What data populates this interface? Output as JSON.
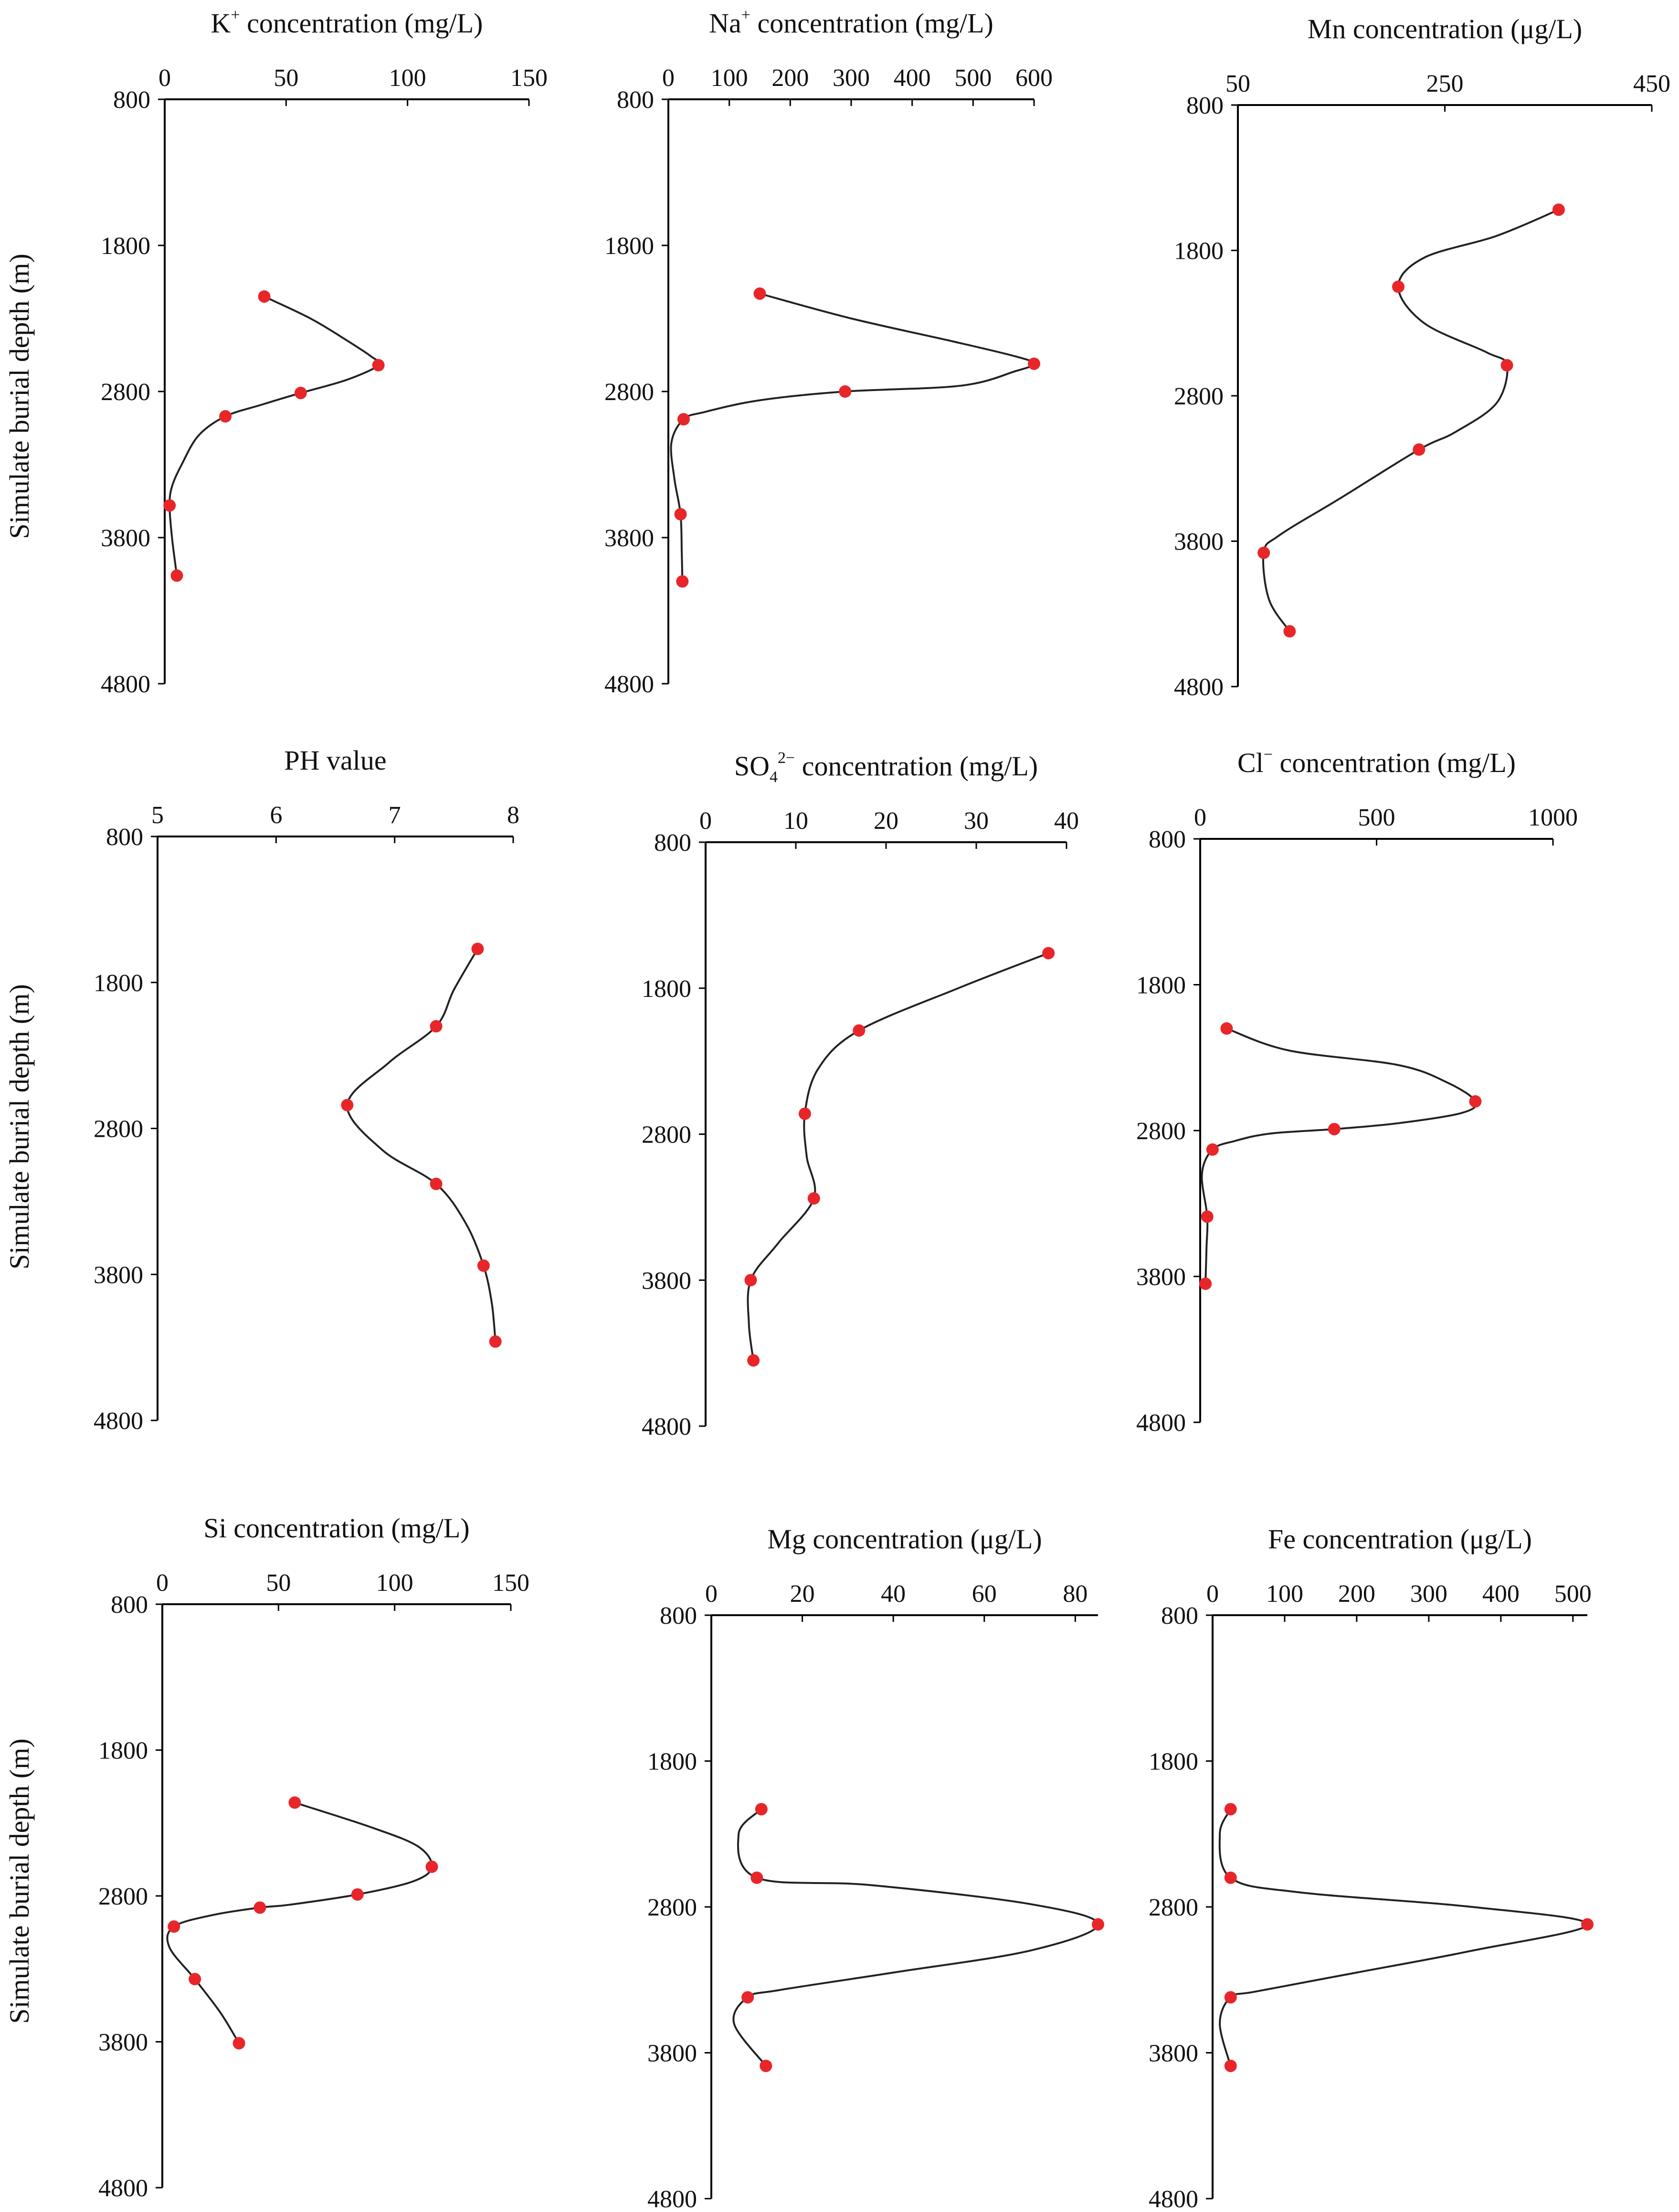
{
  "figure": {
    "y_axis_label": "Simulate burial depth (m)"
  },
  "chart_data": [
    {
      "id": "k",
      "type": "line",
      "title_main": "K",
      "title_sup": "+",
      "title_rest": " concentration (mg/L)",
      "xlim": [
        0,
        150
      ],
      "xticks": [
        0,
        50,
        100,
        150
      ],
      "ylim": [
        800,
        4800
      ],
      "yticks": [
        800,
        1800,
        2800,
        3800,
        4800
      ],
      "yreversed": true,
      "points": [
        [
          41,
          2150
        ],
        [
          88,
          2620
        ],
        [
          56,
          2810
        ],
        [
          25,
          2970
        ],
        [
          2,
          3580
        ],
        [
          5,
          4060
        ]
      ],
      "curve": [
        [
          41,
          2150
        ],
        [
          60,
          2300
        ],
        [
          75,
          2450
        ],
        [
          85,
          2560
        ],
        [
          88,
          2620
        ],
        [
          75,
          2720
        ],
        [
          56,
          2810
        ],
        [
          40,
          2890
        ],
        [
          25,
          2970
        ],
        [
          14,
          3100
        ],
        [
          7,
          3300
        ],
        [
          3,
          3450
        ],
        [
          2,
          3580
        ],
        [
          3,
          3800
        ],
        [
          5,
          4060
        ]
      ]
    },
    {
      "id": "na",
      "type": "line",
      "title_main": "Na",
      "title_sup": "+",
      "title_rest": " concentration (mg/L)",
      "xlim": [
        0,
        600
      ],
      "xticks": [
        0,
        100,
        200,
        300,
        400,
        500,
        600
      ],
      "ylim": [
        800,
        4800
      ],
      "yticks": [
        800,
        1800,
        2800,
        3800,
        4800
      ],
      "yreversed": true,
      "points": [
        [
          150,
          2130
        ],
        [
          600,
          2610
        ],
        [
          290,
          2800
        ],
        [
          25,
          2990
        ],
        [
          20,
          3640
        ],
        [
          23,
          4100
        ]
      ],
      "curve": [
        [
          150,
          2130
        ],
        [
          300,
          2300
        ],
        [
          470,
          2460
        ],
        [
          570,
          2560
        ],
        [
          600,
          2610
        ],
        [
          570,
          2660
        ],
        [
          480,
          2760
        ],
        [
          290,
          2800
        ],
        [
          150,
          2860
        ],
        [
          60,
          2940
        ],
        [
          25,
          2990
        ],
        [
          5,
          3150
        ],
        [
          10,
          3400
        ],
        [
          20,
          3640
        ],
        [
          22,
          3900
        ],
        [
          23,
          4100
        ]
      ]
    },
    {
      "id": "mn",
      "type": "line",
      "title_main": "Mn",
      "title_sup": "",
      "title_rest": " concentration (μg/L)",
      "xlim": [
        50,
        450
      ],
      "xticks": [
        50,
        250,
        450
      ],
      "ylim": [
        800,
        4800
      ],
      "yticks": [
        800,
        1800,
        2800,
        3800,
        4800
      ],
      "yreversed": true,
      "points": [
        [
          360,
          1520
        ],
        [
          205,
          2050
        ],
        [
          310,
          2590
        ],
        [
          225,
          3170
        ],
        [
          75,
          3880
        ],
        [
          100,
          4420
        ]
      ],
      "curve": [
        [
          360,
          1520
        ],
        [
          300,
          1700
        ],
        [
          230,
          1850
        ],
        [
          205,
          2050
        ],
        [
          230,
          2300
        ],
        [
          290,
          2500
        ],
        [
          310,
          2590
        ],
        [
          300,
          2850
        ],
        [
          260,
          3050
        ],
        [
          225,
          3170
        ],
        [
          150,
          3500
        ],
        [
          90,
          3760
        ],
        [
          75,
          3880
        ],
        [
          80,
          4200
        ],
        [
          100,
          4420
        ]
      ]
    },
    {
      "id": "ph",
      "type": "line",
      "title_main": "PH value",
      "title_sup": "",
      "title_rest": "",
      "xlim": [
        5,
        8
      ],
      "xticks": [
        5,
        6,
        7,
        8
      ],
      "ylim": [
        800,
        4800
      ],
      "yticks": [
        800,
        1800,
        2800,
        3800,
        4800
      ],
      "yreversed": true,
      "points": [
        [
          7.7,
          1570
        ],
        [
          7.35,
          2100
        ],
        [
          6.6,
          2640
        ],
        [
          7.35,
          3180
        ],
        [
          7.75,
          3740
        ],
        [
          7.85,
          4260
        ]
      ],
      "curve": [
        [
          7.7,
          1570
        ],
        [
          7.5,
          1850
        ],
        [
          7.35,
          2100
        ],
        [
          6.95,
          2350
        ],
        [
          6.6,
          2640
        ],
        [
          6.9,
          2950
        ],
        [
          7.35,
          3180
        ],
        [
          7.6,
          3450
        ],
        [
          7.75,
          3740
        ],
        [
          7.82,
          4000
        ],
        [
          7.85,
          4260
        ]
      ]
    },
    {
      "id": "so4",
      "type": "line",
      "title_main": "SO",
      "title_sub": "4",
      "title_sup": "2−",
      "title_rest": " concentration (mg/L)",
      "xlim": [
        0,
        40
      ],
      "xticks": [
        0,
        10,
        20,
        30,
        40
      ],
      "ylim": [
        800,
        4800
      ],
      "yticks": [
        800,
        1800,
        2800,
        3800,
        4800
      ],
      "yreversed": true,
      "points": [
        [
          38,
          1560
        ],
        [
          17,
          2090
        ],
        [
          11,
          2660
        ],
        [
          12,
          3240
        ],
        [
          5,
          3800
        ],
        [
          5.3,
          4350
        ]
      ],
      "curve": [
        [
          38,
          1560
        ],
        [
          28,
          1800
        ],
        [
          17,
          2090
        ],
        [
          12.5,
          2350
        ],
        [
          11,
          2660
        ],
        [
          11.2,
          2950
        ],
        [
          12,
          3240
        ],
        [
          8,
          3550
        ],
        [
          5,
          3800
        ],
        [
          4.8,
          4100
        ],
        [
          5.3,
          4350
        ]
      ]
    },
    {
      "id": "cl",
      "type": "line",
      "title_main": "Cl",
      "title_sup": "−",
      "title_rest": " concentration (mg/L)",
      "xlim": [
        0,
        1000
      ],
      "xticks": [
        0,
        500,
        1000
      ],
      "ylim": [
        800,
        4800
      ],
      "yticks": [
        800,
        1800,
        2800,
        3800,
        4800
      ],
      "yreversed": true,
      "points": [
        [
          75,
          2100
        ],
        [
          780,
          2600
        ],
        [
          380,
          2790
        ],
        [
          35,
          2930
        ],
        [
          20,
          3390
        ],
        [
          15,
          3850
        ]
      ],
      "curve": [
        [
          75,
          2100
        ],
        [
          250,
          2250
        ],
        [
          560,
          2350
        ],
        [
          700,
          2470
        ],
        [
          780,
          2600
        ],
        [
          740,
          2680
        ],
        [
          560,
          2750
        ],
        [
          380,
          2790
        ],
        [
          200,
          2820
        ],
        [
          100,
          2870
        ],
        [
          35,
          2930
        ],
        [
          5,
          3100
        ],
        [
          20,
          3390
        ],
        [
          18,
          3600
        ],
        [
          15,
          3850
        ]
      ]
    },
    {
      "id": "si",
      "type": "line",
      "title_main": "Si",
      "title_sup": "",
      "title_rest": " concentration (mg/L)",
      "xlim": [
        0,
        150
      ],
      "xticks": [
        0,
        50,
        100,
        150
      ],
      "ylim": [
        800,
        4800
      ],
      "yticks": [
        800,
        1800,
        2800,
        3800,
        4800
      ],
      "yreversed": true,
      "points": [
        [
          57,
          2160
        ],
        [
          116,
          2600
        ],
        [
          84,
          2790
        ],
        [
          42,
          2880
        ],
        [
          5,
          3010
        ],
        [
          14,
          3370
        ],
        [
          33,
          3810
        ]
      ],
      "curve": [
        [
          57,
          2160
        ],
        [
          90,
          2330
        ],
        [
          110,
          2460
        ],
        [
          116,
          2600
        ],
        [
          108,
          2700
        ],
        [
          84,
          2790
        ],
        [
          55,
          2860
        ],
        [
          42,
          2880
        ],
        [
          22,
          2930
        ],
        [
          5,
          3010
        ],
        [
          3,
          3150
        ],
        [
          14,
          3370
        ],
        [
          25,
          3600
        ],
        [
          33,
          3810
        ]
      ]
    },
    {
      "id": "mg",
      "type": "line",
      "title_main": "Mg",
      "title_sup": "",
      "title_rest": " concentration (μg/L)",
      "xlim": [
        0,
        85
      ],
      "xticks": [
        0,
        20,
        40,
        60,
        80
      ],
      "ylim": [
        800,
        4800
      ],
      "yticks": [
        800,
        1800,
        2800,
        3800,
        4800
      ],
      "yreversed": true,
      "points": [
        [
          11,
          2130
        ],
        [
          10,
          2600
        ],
        [
          85,
          2920
        ],
        [
          8,
          3420
        ],
        [
          12,
          3890
        ]
      ],
      "curve": [
        [
          11,
          2130
        ],
        [
          6,
          2300
        ],
        [
          10,
          2600
        ],
        [
          35,
          2650
        ],
        [
          70,
          2780
        ],
        [
          85,
          2920
        ],
        [
          70,
          3100
        ],
        [
          40,
          3250
        ],
        [
          15,
          3370
        ],
        [
          8,
          3420
        ],
        [
          5,
          3600
        ],
        [
          12,
          3890
        ]
      ]
    },
    {
      "id": "fe",
      "type": "line",
      "title_main": "Fe",
      "title_sup": "",
      "title_rest": " concentration (μg/L)",
      "xlim": [
        0,
        520
      ],
      "xticks": [
        0,
        100,
        200,
        300,
        400,
        500
      ],
      "ylim": [
        800,
        4800
      ],
      "yticks": [
        800,
        1800,
        2800,
        3800,
        4800
      ],
      "yreversed": true,
      "points": [
        [
          25,
          2130
        ],
        [
          25,
          2600
        ],
        [
          520,
          2920
        ],
        [
          25,
          3420
        ],
        [
          25,
          3890
        ]
      ],
      "curve": [
        [
          25,
          2130
        ],
        [
          10,
          2300
        ],
        [
          25,
          2600
        ],
        [
          120,
          2700
        ],
        [
          360,
          2800
        ],
        [
          520,
          2920
        ],
        [
          360,
          3100
        ],
        [
          200,
          3250
        ],
        [
          60,
          3380
        ],
        [
          25,
          3420
        ],
        [
          10,
          3600
        ],
        [
          25,
          3890
        ]
      ]
    }
  ]
}
